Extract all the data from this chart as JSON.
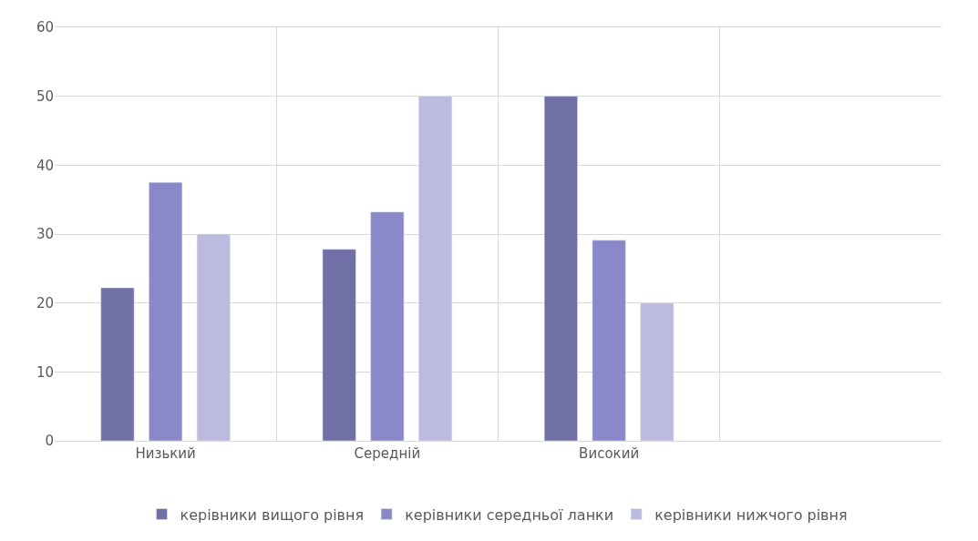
{
  "chart_data": {
    "type": "bar",
    "categories": [
      "Низький",
      "Середній",
      "Високий",
      null
    ],
    "series": [
      {
        "name": "керівники вищого рівня",
        "color": "#7170a6",
        "values": [
          22.2,
          27.8,
          50,
          null
        ]
      },
      {
        "name": "керівники середньої ланки",
        "color": "#8b88c9",
        "values": [
          37.5,
          33.2,
          29.1,
          null
        ]
      },
      {
        "name": "керівники нижчого рівня",
        "color": "#bcbadf",
        "values": [
          30,
          50,
          20,
          null
        ]
      }
    ],
    "ylim": [
      0,
      60
    ],
    "yticks": [
      0,
      10,
      20,
      30,
      40,
      50,
      60
    ],
    "grid": true,
    "legend": "bottom"
  }
}
